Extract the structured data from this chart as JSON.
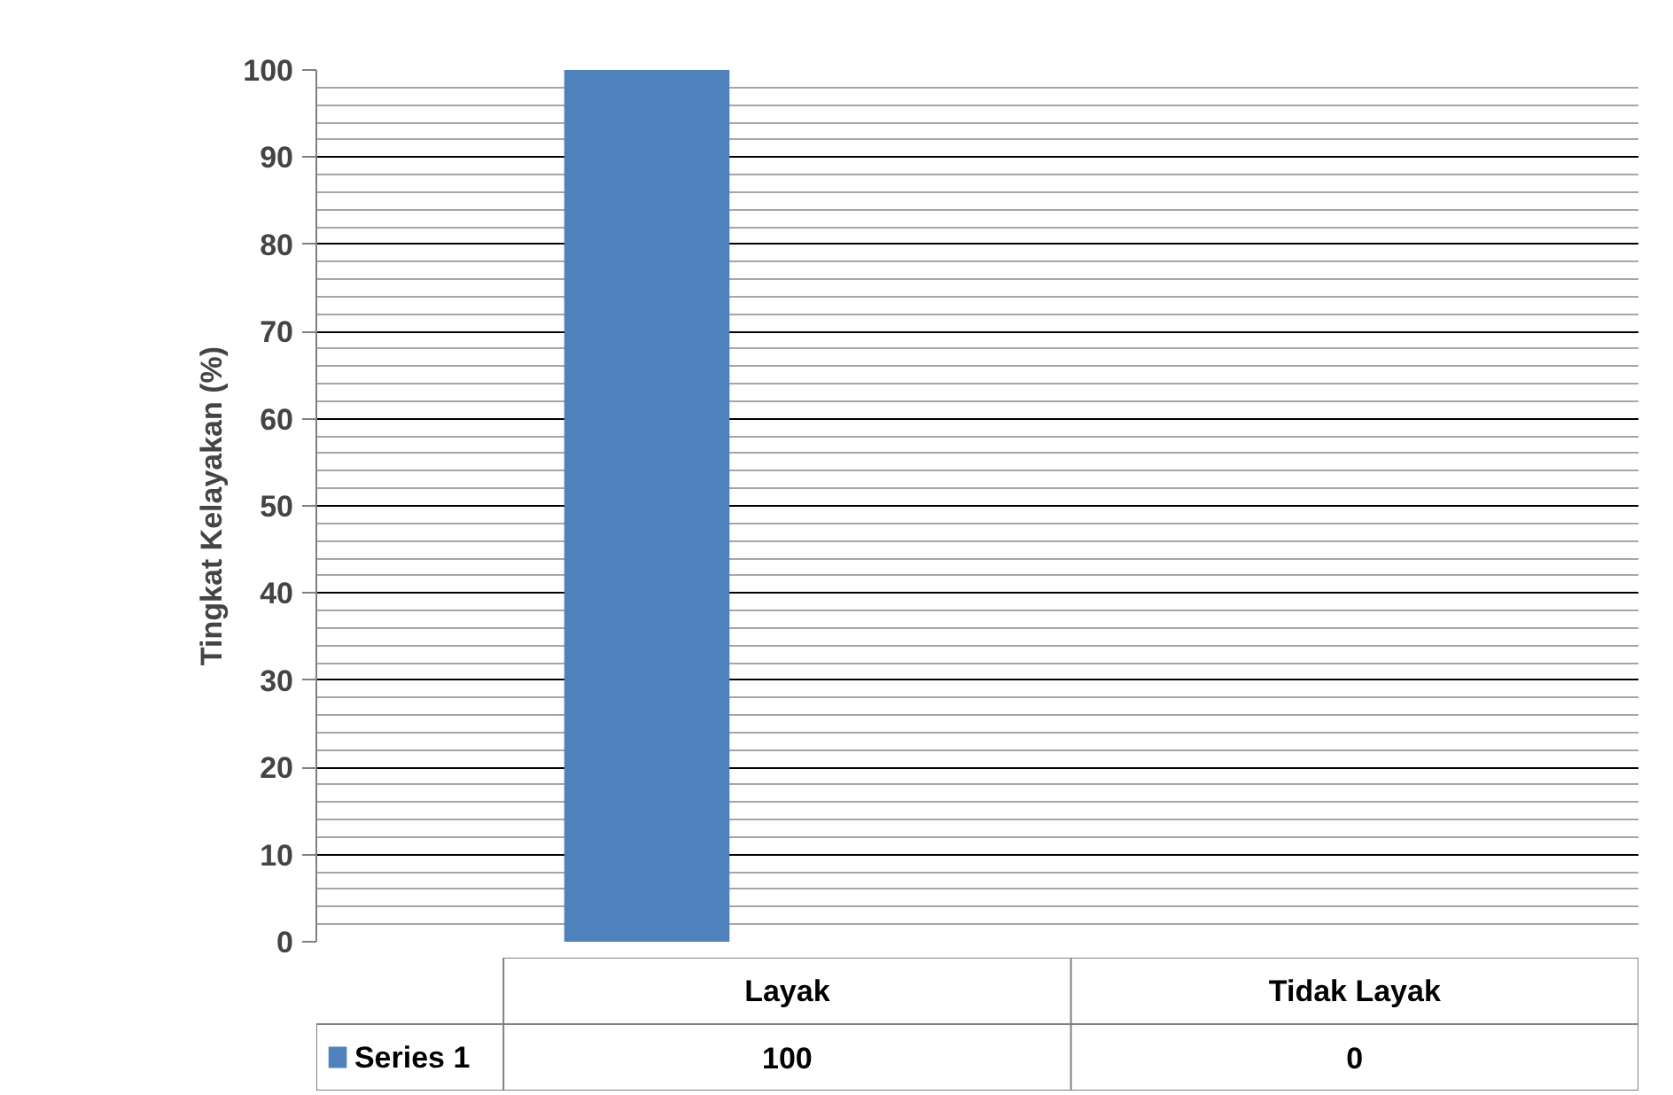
{
  "chart_data": {
    "type": "bar",
    "ylabel": "Tingkat Kelayakan (%)",
    "categories": [
      "Layak",
      "Tidak Layak"
    ],
    "series": [
      {
        "name": "Series 1",
        "color": "#4f81bd",
        "values": [
          100,
          0
        ]
      }
    ],
    "ylim": [
      0,
      100
    ],
    "yticks": [
      0,
      10,
      20,
      30,
      40,
      50,
      60,
      70,
      80,
      90,
      100
    ],
    "grid": "y",
    "legend": "bottom",
    "data_labels": true
  }
}
